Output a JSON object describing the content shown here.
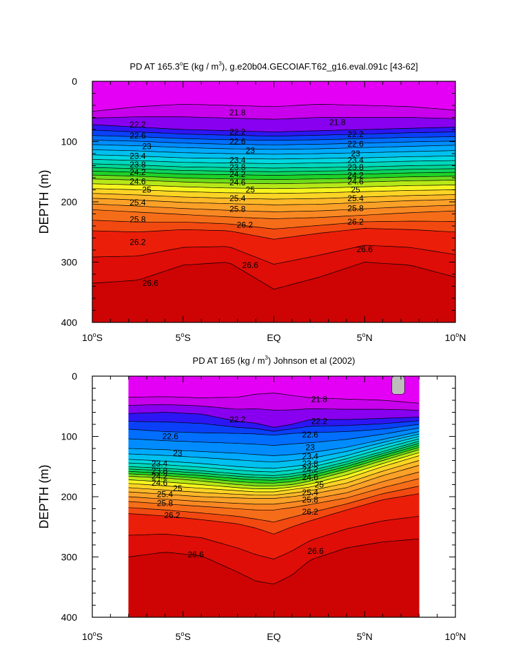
{
  "chart_data": [
    {
      "type": "heatmap",
      "title": "PD AT 165.3°E (kg / m³), g.e20b04.GECOIAF.T62_g16.eval.091c [43-62]",
      "title_parts": {
        "pre": "PD AT 165.3",
        "deg": "o",
        "post1": "E (kg / m",
        "sup": "3",
        "post2": "), g.e20b04.GECOIAF.T62_g16.eval.091c [43-62]"
      },
      "ylabel": "DEPTH (m)",
      "xlim": [
        -10,
        10
      ],
      "ylim": [
        0,
        400
      ],
      "y_reversed": true,
      "x_ticks": [
        {
          "value": -10,
          "num": "10",
          "hem": "S"
        },
        {
          "value": -5,
          "num": "5",
          "hem": "S"
        },
        {
          "value": 0,
          "num": "EQ",
          "hem": ""
        },
        {
          "value": 5,
          "num": "5",
          "hem": "N"
        },
        {
          "value": 10,
          "num": "10",
          "hem": "N"
        }
      ],
      "y_ticks": [
        0,
        100,
        200,
        300,
        400
      ],
      "data_x_range": [
        -10,
        10
      ],
      "contour_interval": 0.2,
      "isopycnal_depths": {
        "x": [
          -10,
          -7.5,
          -5,
          -2.5,
          0,
          2.5,
          5,
          7.5,
          10
        ],
        "levels": [
          {
            "sigma": 21.8,
            "z": [
              50,
              42,
              38,
              40,
              42,
              38,
              40,
              42,
              48
            ]
          },
          {
            "sigma": 22.2,
            "z": [
              72,
              76,
              80,
              82,
              84,
              82,
              80,
              78,
              76
            ]
          },
          {
            "sigma": 22.6,
            "z": [
              90,
              92,
              95,
              97,
              98,
              97,
              95,
              93,
              92
            ]
          },
          {
            "sigma": 23.0,
            "z": [
              105,
              107,
              110,
              112,
              113,
              112,
              110,
              108,
              106
            ]
          },
          {
            "sigma": 23.4,
            "z": [
              122,
              124,
              127,
              128,
              129,
              128,
              127,
              125,
              124
            ]
          },
          {
            "sigma": 23.8,
            "z": [
              137,
              139,
              142,
              143,
              144,
              143,
              142,
              140,
              139
            ]
          },
          {
            "sigma": 24.2,
            "z": [
              149,
              151,
              154,
              155,
              156,
              155,
              154,
              152,
              151
            ]
          },
          {
            "sigma": 24.6,
            "z": [
              162,
              164,
              167,
              169,
              170,
              169,
              167,
              165,
              164
            ]
          },
          {
            "sigma": 25.0,
            "z": [
              178,
              180,
              183,
              185,
              186,
              185,
              183,
              181,
              180
            ]
          },
          {
            "sigma": 25.4,
            "z": [
              194,
              197,
              201,
              203,
              205,
              204,
              201,
              198,
              196
            ]
          },
          {
            "sigma": 25.8,
            "z": [
              213,
              217,
              221,
              225,
              228,
              226,
              222,
              218,
              215
            ]
          },
          {
            "sigma": 26.2,
            "z": [
              248,
              250,
              246,
              248,
              262,
              252,
              244,
              246,
              250
            ]
          },
          {
            "sigma": 26.6,
            "z": [
              335,
              330,
              305,
              300,
              345,
              325,
              300,
              305,
              325
            ]
          }
        ]
      },
      "sigma_surface": 21.5,
      "sigma_bottom": 26.9,
      "labeled_contours": [
        {
          "x": -7.5,
          "z": 72,
          "text": "22.2"
        },
        {
          "x": -7.5,
          "z": 90,
          "text": "22.6"
        },
        {
          "x": -7,
          "z": 108,
          "text": "23"
        },
        {
          "x": -7.5,
          "z": 124,
          "text": "23.4"
        },
        {
          "x": -7.5,
          "z": 138,
          "text": "23.8"
        },
        {
          "x": -7.5,
          "z": 151,
          "text": "24.2"
        },
        {
          "x": -7.5,
          "z": 166,
          "text": "24.6"
        },
        {
          "x": -7,
          "z": 180,
          "text": "25"
        },
        {
          "x": -7.5,
          "z": 201,
          "text": "25.4"
        },
        {
          "x": -7.5,
          "z": 229,
          "text": "25.8"
        },
        {
          "x": -7.5,
          "z": 267,
          "text": "26.2"
        },
        {
          "x": -6.8,
          "z": 335,
          "text": "26.6"
        },
        {
          "x": -2.0,
          "z": 52,
          "text": "21.8"
        },
        {
          "x": -2.0,
          "z": 84,
          "text": "22.2"
        },
        {
          "x": -2.0,
          "z": 100,
          "text": "22.6"
        },
        {
          "x": -1.3,
          "z": 115,
          "text": "23"
        },
        {
          "x": -2.0,
          "z": 131,
          "text": "23.4"
        },
        {
          "x": -2.0,
          "z": 143,
          "text": "23.8"
        },
        {
          "x": -2.0,
          "z": 154,
          "text": "24.2"
        },
        {
          "x": -2.0,
          "z": 168,
          "text": "24.6"
        },
        {
          "x": -1.3,
          "z": 180,
          "text": "25"
        },
        {
          "x": -2.0,
          "z": 194,
          "text": "25.4"
        },
        {
          "x": -2.0,
          "z": 212,
          "text": "25.8"
        },
        {
          "x": -1.6,
          "z": 238,
          "text": "26.2"
        },
        {
          "x": -1.3,
          "z": 305,
          "text": "26.6"
        },
        {
          "x": 3.5,
          "z": 68,
          "text": "21.8"
        },
        {
          "x": 4.5,
          "z": 88,
          "text": "22.2"
        },
        {
          "x": 4.5,
          "z": 104,
          "text": "22.6"
        },
        {
          "x": 4.5,
          "z": 120,
          "text": "23"
        },
        {
          "x": 4.5,
          "z": 131,
          "text": "23.4"
        },
        {
          "x": 4.5,
          "z": 143,
          "text": "23.8"
        },
        {
          "x": 4.5,
          "z": 156,
          "text": "24.2"
        },
        {
          "x": 4.5,
          "z": 166,
          "text": "24.6"
        },
        {
          "x": 4.5,
          "z": 180,
          "text": "25"
        },
        {
          "x": 4.5,
          "z": 194,
          "text": "25.4"
        },
        {
          "x": 4.5,
          "z": 211,
          "text": "25.8"
        },
        {
          "x": 4.5,
          "z": 233,
          "text": "26.2"
        },
        {
          "x": 5.0,
          "z": 279,
          "text": "26.6"
        }
      ]
    },
    {
      "type": "heatmap",
      "title": "PD AT 165 (kg / m³) Johnson et al (2002)",
      "title_parts": {
        "pre": "PD AT 165 (kg / m",
        "deg": "",
        "post1": "",
        "sup": "3",
        "post2": ") Johnson et al (2002)"
      },
      "ylabel": "DEPTH (m)",
      "xlim": [
        -10,
        10
      ],
      "ylim": [
        0,
        400
      ],
      "y_reversed": true,
      "x_ticks": [
        {
          "value": -10,
          "num": "10",
          "hem": "S"
        },
        {
          "value": -5,
          "num": "5",
          "hem": "S"
        },
        {
          "value": 0,
          "num": "EQ",
          "hem": ""
        },
        {
          "value": 5,
          "num": "5",
          "hem": "N"
        },
        {
          "value": 10,
          "num": "10",
          "hem": "N"
        }
      ],
      "y_ticks": [
        0,
        100,
        200,
        300,
        400
      ],
      "data_x_range": [
        -8,
        8
      ],
      "contour_interval": 0.2,
      "isopycnal_depths": {
        "x": [
          -8,
          -6,
          -4,
          -2,
          -1,
          0,
          1,
          2,
          4,
          6,
          8
        ],
        "levels": [
          {
            "sigma": 21.8,
            "z": [
              35,
              34,
              36,
              35,
              30,
              28,
              32,
              36,
              38,
              40,
              45
            ]
          },
          {
            "sigma": 22.2,
            "z": [
              62,
              60,
              63,
              75,
              78,
              85,
              80,
              72,
              72,
              70,
              68
            ]
          },
          {
            "sigma": 22.6,
            "z": [
              88,
              92,
              94,
              95,
              96,
              98,
              95,
              94,
              92,
              88,
              80
            ]
          },
          {
            "sigma": 23.0,
            "z": [
              120,
              122,
              125,
              128,
              130,
              132,
              130,
              127,
              118,
              105,
              92
            ]
          },
          {
            "sigma": 23.4,
            "z": [
              138,
              141,
              145,
              150,
              152,
              153,
              150,
              146,
              132,
              115,
              100
            ]
          },
          {
            "sigma": 23.8,
            "z": [
              150,
              153,
              157,
              162,
              164,
              165,
              162,
              157,
              142,
              125,
              108
            ]
          },
          {
            "sigma": 24.2,
            "z": [
              158,
              161,
              165,
              170,
              172,
              173,
              170,
              165,
              150,
              132,
              115
            ]
          },
          {
            "sigma": 24.6,
            "z": [
              166,
              169,
              174,
              180,
              182,
              182,
              180,
              174,
              158,
              140,
              122
            ]
          },
          {
            "sigma": 25.0,
            "z": [
              178,
              182,
              186,
              190,
              192,
              192,
              188,
              184,
              170,
              150,
              132
            ]
          },
          {
            "sigma": 25.4,
            "z": [
              192,
              196,
              200,
              202,
              203,
              203,
              200,
              196,
              185,
              165,
              148
            ]
          },
          {
            "sigma": 25.8,
            "z": [
              208,
              212,
              216,
              220,
              222,
              222,
              218,
              213,
              202,
              185,
              170
            ]
          },
          {
            "sigma": 26.2,
            "z": [
              228,
              232,
              238,
              245,
              252,
              262,
              250,
              240,
              222,
              205,
              195
            ]
          },
          {
            "sigma": 26.6,
            "z": [
              300,
              292,
              298,
              325,
              340,
              345,
              330,
              305,
              285,
              275,
              270
            ]
          }
        ]
      },
      "sigma_surface": 21.5,
      "sigma_bottom": 26.9,
      "missing_region": {
        "x": [
          6.5,
          7.2
        ],
        "z": [
          0,
          30
        ]
      },
      "labeled_contours": [
        {
          "x": 2.5,
          "z": 38,
          "text": "21.8"
        },
        {
          "x": -2.0,
          "z": 72,
          "text": "22.2"
        },
        {
          "x": 2.5,
          "z": 75,
          "text": "22.2"
        },
        {
          "x": -5.7,
          "z": 100,
          "text": "22.6"
        },
        {
          "x": 2.0,
          "z": 97,
          "text": "22.6"
        },
        {
          "x": -5.3,
          "z": 128,
          "text": "23"
        },
        {
          "x": 2.0,
          "z": 118,
          "text": "23"
        },
        {
          "x": -6.3,
          "z": 145,
          "text": "23.4"
        },
        {
          "x": 2.0,
          "z": 133,
          "text": "23.4"
        },
        {
          "x": -6.3,
          "z": 157,
          "text": "23.8"
        },
        {
          "x": 2.0,
          "z": 145,
          "text": "23.8"
        },
        {
          "x": -6.3,
          "z": 166,
          "text": "24.2"
        },
        {
          "x": 2.0,
          "z": 155,
          "text": "24.2"
        },
        {
          "x": -6.3,
          "z": 177,
          "text": "24.6"
        },
        {
          "x": 2.0,
          "z": 168,
          "text": "24.6"
        },
        {
          "x": -5.3,
          "z": 186,
          "text": "25"
        },
        {
          "x": 2.5,
          "z": 180,
          "text": "25"
        },
        {
          "x": -6.0,
          "z": 196,
          "text": "25.4"
        },
        {
          "x": 2.0,
          "z": 193,
          "text": "25.4"
        },
        {
          "x": -6.0,
          "z": 211,
          "text": "25.8"
        },
        {
          "x": 2.0,
          "z": 205,
          "text": "25.8"
        },
        {
          "x": -5.6,
          "z": 231,
          "text": "26.2"
        },
        {
          "x": 2.0,
          "z": 225,
          "text": "26.2"
        },
        {
          "x": -4.3,
          "z": 296,
          "text": "26.6"
        },
        {
          "x": 2.3,
          "z": 290,
          "text": "26.6"
        }
      ]
    }
  ],
  "panels_layout": [
    "top",
    "bottom"
  ]
}
